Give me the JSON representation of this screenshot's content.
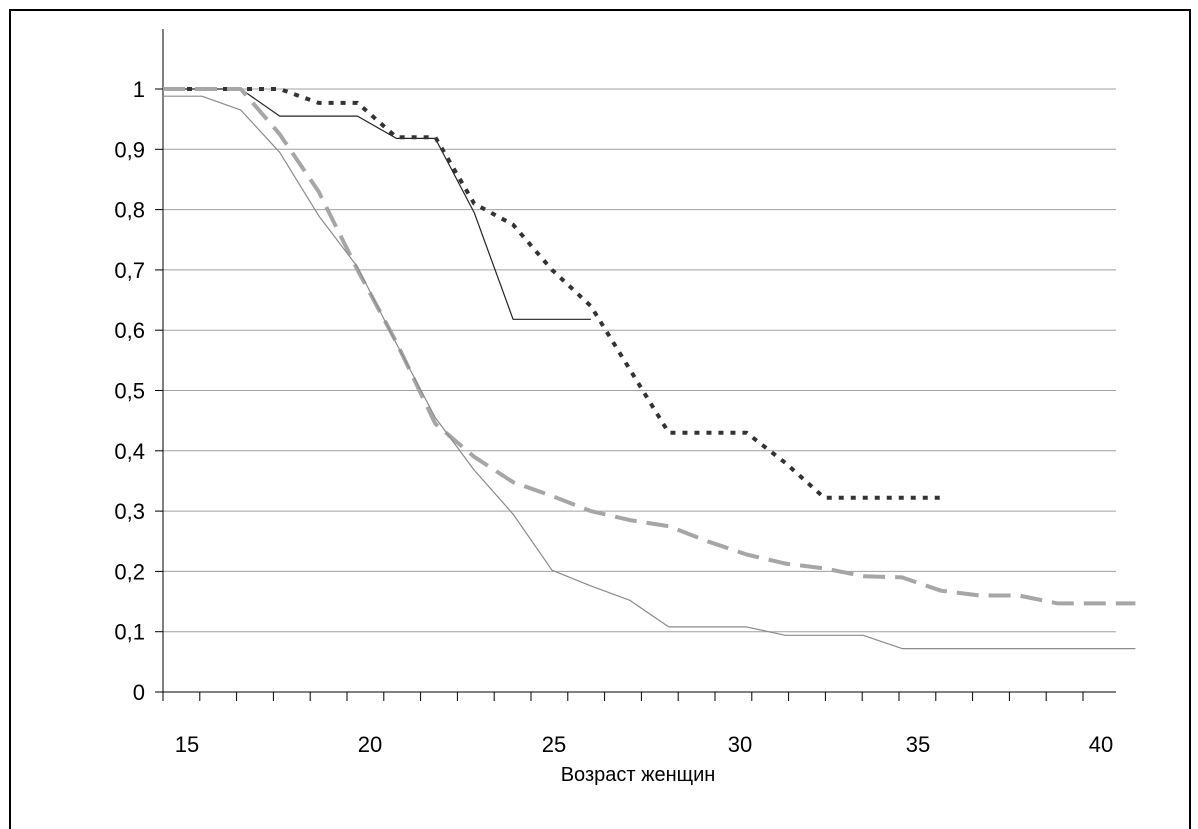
{
  "chart_data": {
    "type": "line",
    "title": "",
    "xlabel": "Возраст женщин",
    "ylabel": "",
    "xlim": [
      15,
      40
    ],
    "ylim": [
      0,
      1
    ],
    "x_ticks": [
      15,
      20,
      25,
      30,
      35,
      40
    ],
    "x_tick_labels": [
      "15",
      "20",
      "25",
      "30",
      "35",
      "40"
    ],
    "y_ticks": [
      0,
      0.1,
      0.2,
      0.3,
      0.4,
      0.5,
      0.6,
      0.7,
      0.8,
      0.9,
      1
    ],
    "y_tick_labels": [
      "0",
      "0,1",
      "0,2",
      "0,3",
      "0,4",
      "0,5",
      "0,6",
      "0,7",
      "0,8",
      "0,9",
      "1"
    ],
    "grid": "horizontal",
    "legend": "none",
    "series": [
      {
        "style": "solid-black-thin",
        "color": "#222222",
        "x": [
          15,
          17,
          18,
          20,
          21,
          22,
          23,
          24,
          26
        ],
        "y": [
          1.0,
          1.0,
          0.955,
          0.955,
          0.918,
          0.918,
          0.795,
          0.618,
          0.618
        ]
      },
      {
        "style": "dotted-black-thick",
        "color": "#333333",
        "x": [
          15,
          18,
          19,
          20,
          21,
          22,
          23,
          24,
          25,
          26,
          27,
          28,
          29,
          30,
          31,
          32,
          33,
          34,
          35
        ],
        "y": [
          1.0,
          1.0,
          0.977,
          0.977,
          0.92,
          0.92,
          0.81,
          0.775,
          0.7,
          0.64,
          0.535,
          0.43,
          0.43,
          0.43,
          0.38,
          0.322,
          0.322,
          0.322,
          0.322
        ]
      },
      {
        "style": "dashed-gray-thick",
        "color": "#a6a6a6",
        "x": [
          15,
          17,
          18,
          19,
          20,
          21,
          22,
          23,
          24,
          25,
          26,
          27,
          28,
          29,
          30,
          31,
          32,
          33,
          34,
          35,
          36,
          37,
          38,
          39,
          40
        ],
        "y": [
          1.0,
          1.0,
          0.925,
          0.83,
          0.7,
          0.58,
          0.445,
          0.39,
          0.348,
          0.325,
          0.3,
          0.285,
          0.275,
          0.25,
          0.228,
          0.213,
          0.205,
          0.192,
          0.19,
          0.168,
          0.16,
          0.16,
          0.147,
          0.147,
          0.147
        ]
      },
      {
        "style": "solid-gray-thin",
        "color": "#8a8a8a",
        "x": [
          15,
          16,
          17,
          18,
          19,
          20,
          21,
          22,
          23,
          24,
          25,
          26,
          27,
          28,
          29,
          30,
          31,
          32,
          33,
          34,
          35,
          36,
          37,
          38,
          39,
          40
        ],
        "y": [
          0.988,
          0.988,
          0.965,
          0.895,
          0.79,
          0.705,
          0.578,
          0.455,
          0.368,
          0.295,
          0.202,
          0.176,
          0.152,
          0.108,
          0.108,
          0.108,
          0.094,
          0.094,
          0.094,
          0.072,
          0.072,
          0.072,
          0.072,
          0.072,
          0.072,
          0.072
        ]
      }
    ]
  }
}
